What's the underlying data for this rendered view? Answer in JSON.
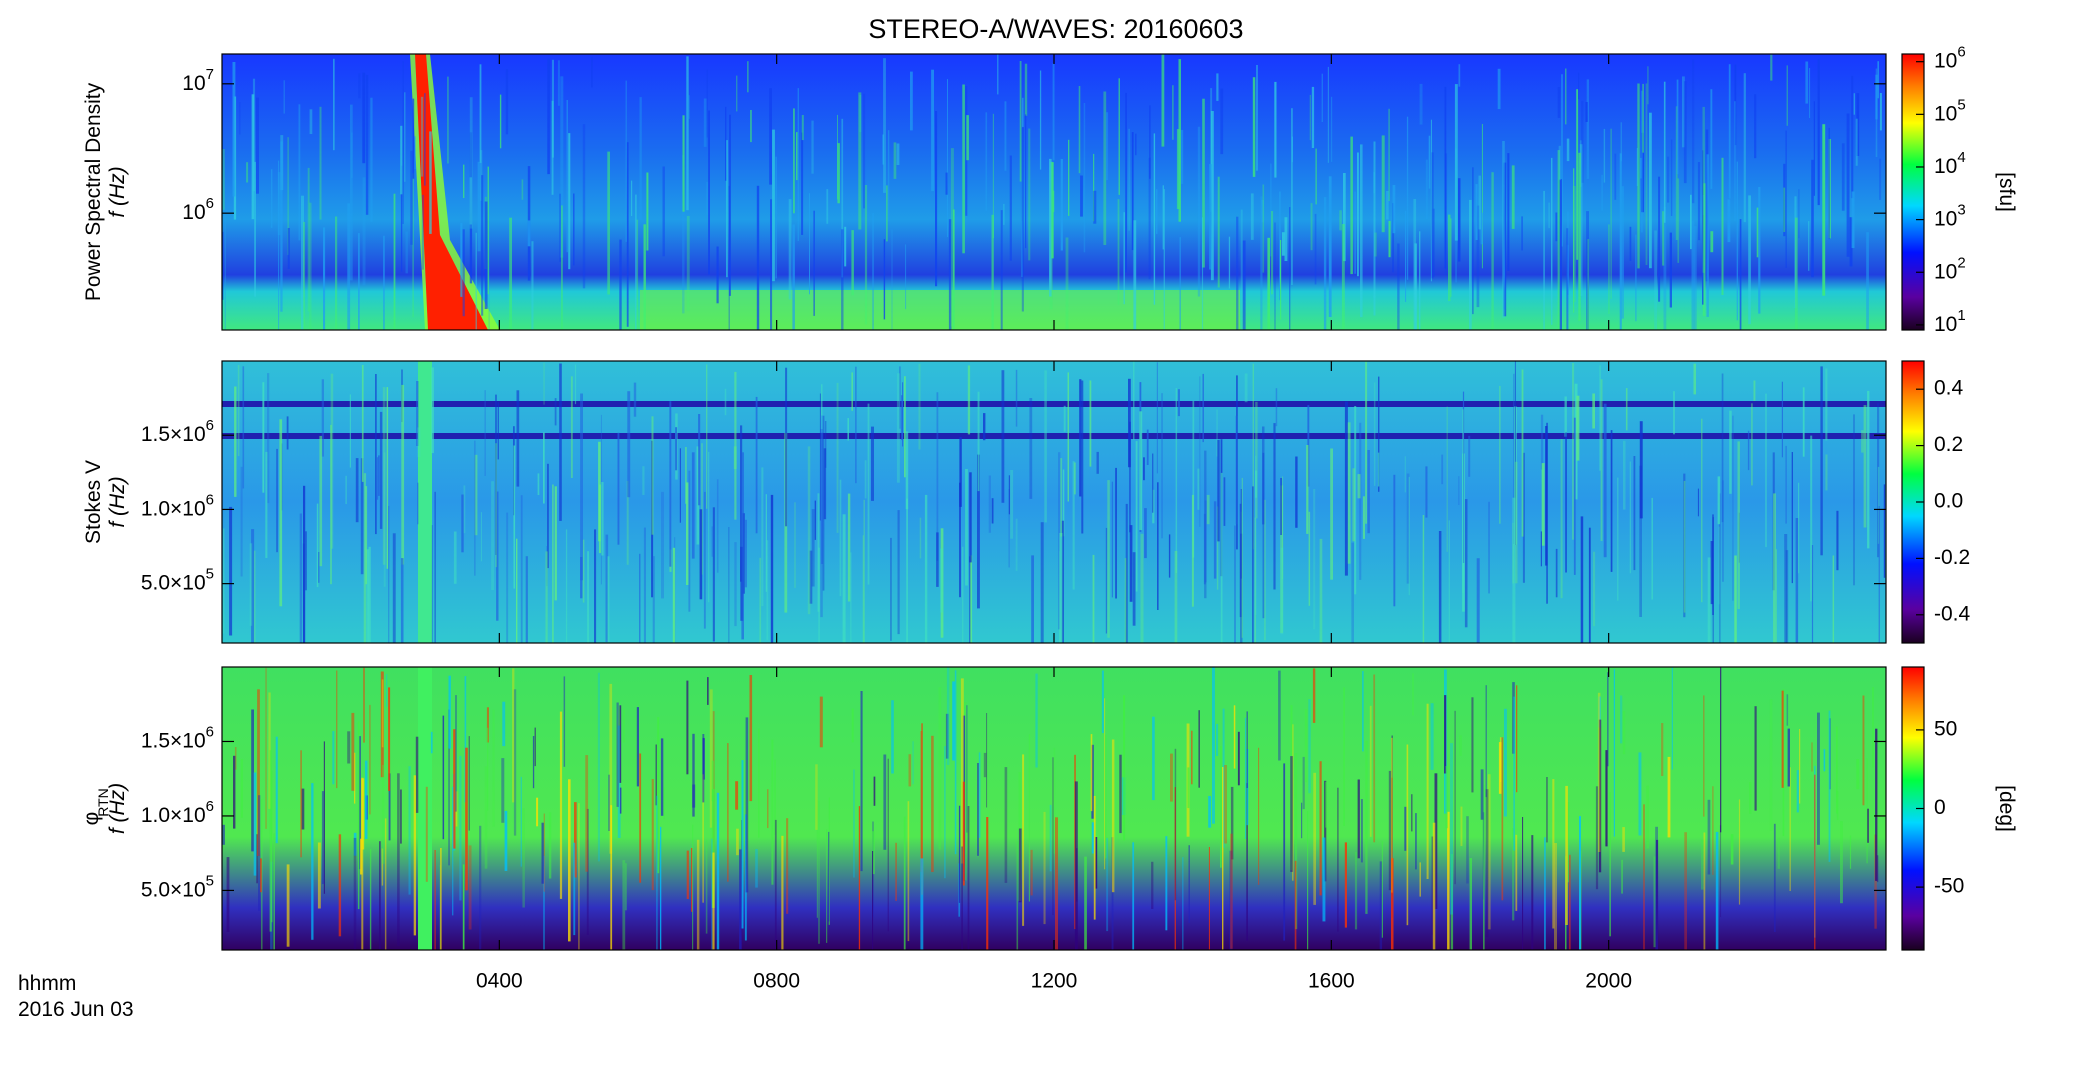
{
  "title": "STEREO-A/WAVES: 20160603",
  "x_label": "hhmm",
  "date_label": "2016 Jun 03",
  "chart_data": [
    {
      "type": "spectrogram",
      "ylabel": [
        "Power Spectral Density",
        "f (Hz)"
      ],
      "ylog": true,
      "ylim": [
        125000,
        17000000
      ],
      "yticks": [
        {
          "value": 1000000,
          "label": "10^6"
        },
        {
          "value": 10000000,
          "label": "10^7"
        }
      ],
      "colorbar_label": "[sfu]",
      "clog": true,
      "clim": [
        8,
        1400000
      ],
      "cticks": [
        {
          "value": 10,
          "label": "10^1"
        },
        {
          "value": 100,
          "label": "10^2"
        },
        {
          "value": 1000,
          "label": "10^3"
        },
        {
          "value": 10000,
          "label": "10^4"
        },
        {
          "value": 100000,
          "label": "10^5"
        },
        {
          "value": 1000000,
          "label": "10^6"
        }
      ]
    },
    {
      "type": "spectrogram",
      "ylabel": [
        "Stokes V",
        "f (Hz)"
      ],
      "ylog": false,
      "ylim": [
        100000,
        2000000
      ],
      "yticks": [
        {
          "value": 500000,
          "label": "5.0×10^5"
        },
        {
          "value": 1000000,
          "label": "1.0×10^6"
        },
        {
          "value": 1500000,
          "label": "1.5×10^6"
        }
      ],
      "clog": false,
      "clim": [
        -0.5,
        0.5
      ],
      "cticks": [
        -0.4,
        -0.2,
        {
          "value": 0,
          "label": "0.0"
        },
        0.2,
        0.4
      ]
    },
    {
      "type": "spectrogram",
      "ylabel": [
        "φ",
        "RTN",
        "f (Hz)"
      ],
      "ylog": false,
      "ylim": [
        100000,
        2000000
      ],
      "yticks": [
        {
          "value": 500000,
          "label": "5.0×10^5"
        },
        {
          "value": 1000000,
          "label": "1.0×10^6"
        },
        {
          "value": 1500000,
          "label": "1.5×10^6"
        }
      ],
      "colorbar_label": "[deg]",
      "clog": false,
      "clim": [
        -90,
        90
      ],
      "cticks": [
        -50,
        0,
        50
      ],
      "xlim": [
        0,
        24
      ],
      "xticks": [
        {
          "value": 4,
          "label": "0400"
        },
        {
          "value": 8,
          "label": "0800"
        },
        {
          "value": 12,
          "label": "1200"
        },
        {
          "value": 16,
          "label": "1600"
        },
        {
          "value": 20,
          "label": "2000"
        }
      ]
    }
  ]
}
